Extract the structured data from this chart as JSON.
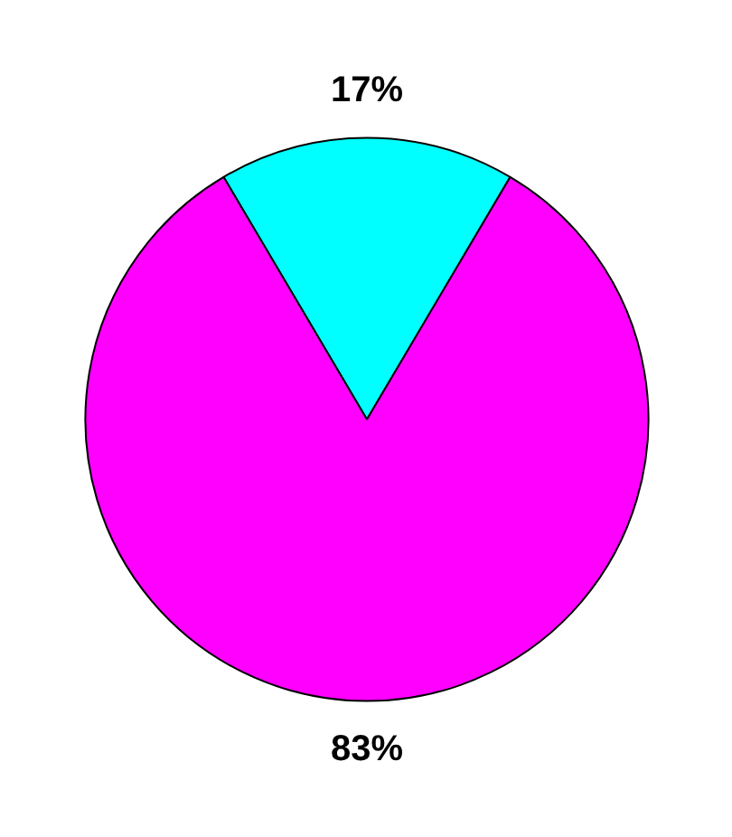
{
  "chart_data": {
    "type": "pie",
    "categories": [
      null,
      null
    ],
    "values": [
      17,
      83
    ],
    "colors": [
      "#00ffff",
      "#ff00ff"
    ],
    "value_labels": [
      "17%",
      "83%"
    ]
  }
}
